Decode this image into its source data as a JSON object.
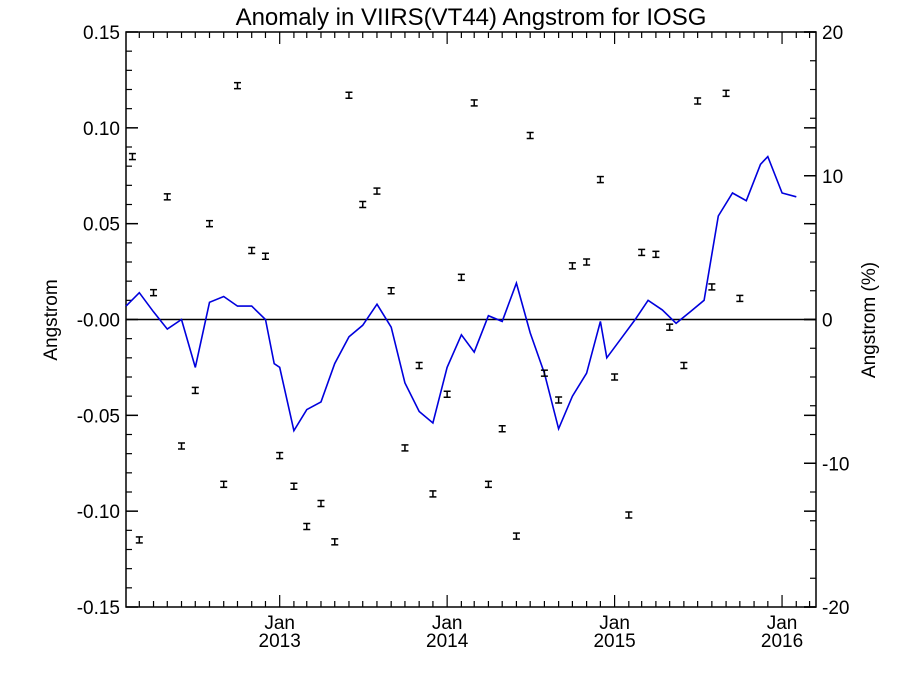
{
  "chart_data": {
    "type": "line",
    "title": "Anomaly in VIIRS(VT44) Angstrom for IOSG",
    "ylabel": "Angstrom",
    "y2label": "Angstrom (%)",
    "xlabel": "",
    "x_range": [
      "2012-02-01",
      "2016-03-15"
    ],
    "ylim": [
      -0.15,
      0.15
    ],
    "y2lim": [
      -20,
      20
    ],
    "y_ticks": [
      "0.15",
      "0.10",
      "0.05",
      "-0.00",
      "-0.05",
      "-0.10",
      "-0.15"
    ],
    "y2_ticks": [
      "20",
      "10",
      "0",
      "-10",
      "-20"
    ],
    "x_tick_labels": [
      {
        "month": "Jan",
        "year": "2013"
      },
      {
        "month": "Jan",
        "year": "2014"
      },
      {
        "month": "Jan",
        "year": "2015"
      },
      {
        "month": "Jan",
        "year": "2016"
      }
    ],
    "zero_line": 0,
    "series": [
      {
        "type": "line",
        "color": "#0000dd",
        "points": [
          [
            "2012-02-01",
            0.007
          ],
          [
            "2012-03-01",
            0.014
          ],
          [
            "2012-04-01",
            0.004
          ],
          [
            "2012-05-01",
            -0.005
          ],
          [
            "2012-06-01",
            0.0
          ],
          [
            "2012-07-01",
            -0.025
          ],
          [
            "2012-08-01",
            0.009
          ],
          [
            "2012-09-01",
            0.012
          ],
          [
            "2012-10-01",
            0.007
          ],
          [
            "2012-11-01",
            0.007
          ],
          [
            "2012-12-01",
            0.0
          ],
          [
            "2012-12-20",
            -0.023
          ],
          [
            "2013-01-01",
            -0.025
          ],
          [
            "2013-02-01",
            -0.058
          ],
          [
            "2013-03-01",
            -0.047
          ],
          [
            "2013-04-01",
            -0.043
          ],
          [
            "2013-05-01",
            -0.023
          ],
          [
            "2013-06-01",
            -0.009
          ],
          [
            "2013-07-01",
            -0.003
          ],
          [
            "2013-08-01",
            0.008
          ],
          [
            "2013-09-01",
            -0.004
          ],
          [
            "2013-10-01",
            -0.033
          ],
          [
            "2013-11-01",
            -0.048
          ],
          [
            "2013-12-01",
            -0.054
          ],
          [
            "2014-01-01",
            -0.025
          ],
          [
            "2014-02-01",
            -0.008
          ],
          [
            "2014-03-01",
            -0.017
          ],
          [
            "2014-04-01",
            0.002
          ],
          [
            "2014-05-01",
            -0.001
          ],
          [
            "2014-06-01",
            0.019
          ],
          [
            "2014-07-01",
            -0.007
          ],
          [
            "2014-08-01",
            -0.028
          ],
          [
            "2014-09-01",
            -0.057
          ],
          [
            "2014-10-01",
            -0.04
          ],
          [
            "2014-11-01",
            -0.028
          ],
          [
            "2014-12-01",
            -0.001
          ],
          [
            "2014-12-15",
            -0.02
          ],
          [
            "2015-01-15",
            -0.01
          ],
          [
            "2015-02-15",
            0.0
          ],
          [
            "2015-03-15",
            0.01
          ],
          [
            "2015-04-15",
            0.005
          ],
          [
            "2015-05-15",
            -0.002
          ],
          [
            "2015-06-15",
            0.004
          ],
          [
            "2015-07-15",
            0.01
          ],
          [
            "2015-08-15",
            0.054
          ],
          [
            "2015-09-15",
            0.066
          ],
          [
            "2015-10-15",
            0.062
          ],
          [
            "2015-11-15",
            0.081
          ],
          [
            "2015-12-01",
            0.085
          ],
          [
            "2016-01-01",
            0.066
          ],
          [
            "2016-02-01",
            0.064
          ]
        ]
      },
      {
        "type": "errorbar_points",
        "color": "#000000",
        "points": [
          [
            "2012-02-15",
            0.085
          ],
          [
            "2012-03-01",
            -0.115
          ],
          [
            "2012-04-01",
            0.014
          ],
          [
            "2012-05-01",
            0.064
          ],
          [
            "2012-06-01",
            -0.066
          ],
          [
            "2012-07-01",
            -0.037
          ],
          [
            "2012-08-01",
            0.05
          ],
          [
            "2012-09-01",
            -0.086
          ],
          [
            "2012-10-01",
            0.122
          ],
          [
            "2012-11-01",
            0.036
          ],
          [
            "2012-12-01",
            0.033
          ],
          [
            "2013-01-01",
            -0.071
          ],
          [
            "2013-02-01",
            -0.087
          ],
          [
            "2013-03-01",
            -0.108
          ],
          [
            "2013-04-01",
            -0.096
          ],
          [
            "2013-05-01",
            -0.116
          ],
          [
            "2013-06-01",
            0.117
          ],
          [
            "2013-07-01",
            0.06
          ],
          [
            "2013-08-01",
            0.067
          ],
          [
            "2013-09-01",
            0.015
          ],
          [
            "2013-10-01",
            -0.067
          ],
          [
            "2013-11-01",
            -0.024
          ],
          [
            "2013-12-01",
            -0.091
          ],
          [
            "2014-01-01",
            -0.039
          ],
          [
            "2014-02-01",
            0.022
          ],
          [
            "2014-03-01",
            0.113
          ],
          [
            "2014-04-01",
            -0.086
          ],
          [
            "2014-05-01",
            -0.057
          ],
          [
            "2014-06-01",
            -0.113
          ],
          [
            "2014-07-01",
            0.096
          ],
          [
            "2014-08-01",
            -0.028
          ],
          [
            "2014-09-01",
            -0.042
          ],
          [
            "2014-10-01",
            0.028
          ],
          [
            "2014-11-01",
            0.03
          ],
          [
            "2014-12-01",
            0.073
          ],
          [
            "2015-01-01",
            -0.03
          ],
          [
            "2015-02-01",
            -0.102
          ],
          [
            "2015-03-01",
            0.035
          ],
          [
            "2015-04-01",
            0.034
          ],
          [
            "2015-05-01",
            -0.004
          ],
          [
            "2015-06-01",
            -0.024
          ],
          [
            "2015-07-01",
            0.114
          ],
          [
            "2015-08-01",
            0.017
          ],
          [
            "2015-09-01",
            0.118
          ],
          [
            "2015-10-01",
            0.011
          ]
        ]
      }
    ]
  }
}
